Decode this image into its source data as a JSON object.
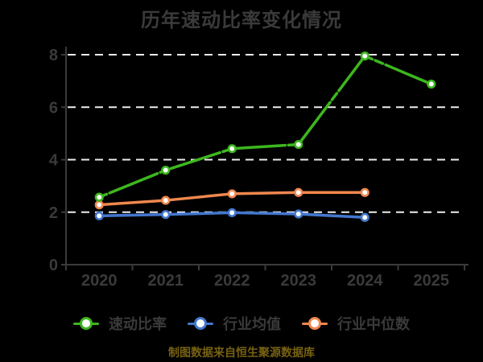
{
  "title": "历年速动比率变化情况",
  "caption": "制图数据来自恒生聚源数据库",
  "legend": [
    {
      "label": "速动比率",
      "color": "#3db71e"
    },
    {
      "label": "行业均值",
      "color": "#4377ce"
    },
    {
      "label": "行业中位数",
      "color": "#f0874e"
    }
  ],
  "colors": {
    "background": "#000000",
    "axis": "#3a3a3a",
    "tick_label": "#3a3a3a",
    "gridline": "#ededed",
    "marker_fill": "#ffffff",
    "caption": "#776112"
  },
  "chart_data": {
    "type": "line",
    "title": "历年速动比率变化情况",
    "categories": [
      "2020",
      "2021",
      "2022",
      "2023",
      "2024",
      "2025"
    ],
    "series": [
      {
        "name": "速动比率",
        "color": "#3db71e",
        "dashed": true,
        "values": [
          2.57,
          3.6,
          4.42,
          4.58,
          7.95,
          6.88
        ]
      },
      {
        "name": "行业均值",
        "color": "#4377ce",
        "dashed": false,
        "values": [
          1.86,
          1.91,
          1.98,
          1.93,
          1.8,
          null
        ]
      },
      {
        "name": "行业中位数",
        "color": "#f0874e",
        "dashed": false,
        "values": [
          2.28,
          2.45,
          2.7,
          2.75,
          2.75,
          null
        ]
      }
    ],
    "xlabel": "",
    "ylabel": "",
    "ylim": [
      0,
      8
    ],
    "yticks": [
      0,
      2,
      4,
      6,
      8
    ],
    "grid": "horizontal-dashed",
    "legend_position": "bottom",
    "source_note": "制图数据来自恒生聚源数据库"
  }
}
